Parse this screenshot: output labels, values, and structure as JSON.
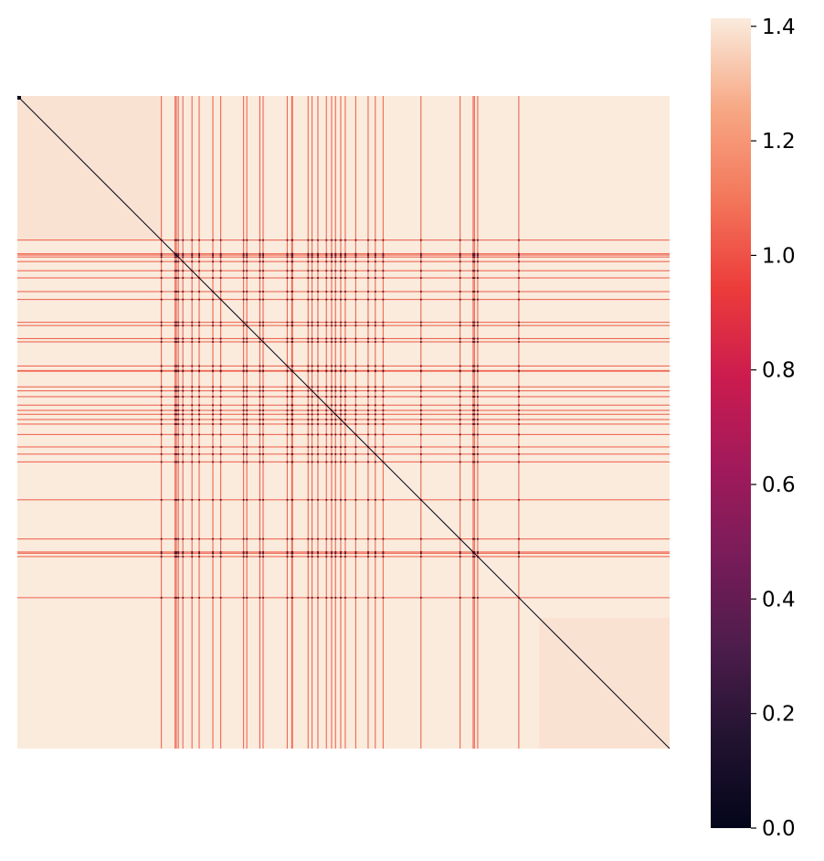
{
  "chart_data": {
    "type": "heatmap",
    "title": "",
    "xlabel": "",
    "ylabel": "",
    "xticks": [],
    "yticks": [],
    "description_matrix": {
      "size": 1000,
      "symmetric": true,
      "diagonal_value": 0.0,
      "background_value": 1.4,
      "cluster_blocks": [
        {
          "from": 0,
          "to": 220,
          "value": 1.36
        },
        {
          "from": 800,
          "to": 1000,
          "value": 1.36
        }
      ],
      "highlighted_indices": [
        220,
        241,
        243,
        246,
        253,
        267,
        278,
        299,
        311,
        346,
        351,
        371,
        376,
        413,
        420,
        421,
        445,
        451,
        460,
        473,
        481,
        487,
        495,
        502,
        518,
        537,
        548,
        560,
        618,
        678,
        698,
        700,
        705,
        768
      ],
      "highlighted_value": 1.05
    },
    "colorbar": {
      "colormap": "rocket",
      "vmin": 0.0,
      "vmax": 1.414,
      "ticks": [
        0.0,
        0.2,
        0.4,
        0.6,
        0.8,
        1.0,
        1.2,
        1.4
      ],
      "tick_labels": [
        "0.0",
        "0.2",
        "0.4",
        "0.6",
        "0.8",
        "1.0",
        "1.2",
        "1.4"
      ],
      "colors": [
        "#03051a",
        "#221331",
        "#4c1d4b",
        "#781c59",
        "#a11a5b",
        "#cb1b4f",
        "#ec3c3a",
        "#f3775b",
        "#f7a884",
        "#faebdd"
      ]
    },
    "grid": false,
    "legend": "none"
  }
}
